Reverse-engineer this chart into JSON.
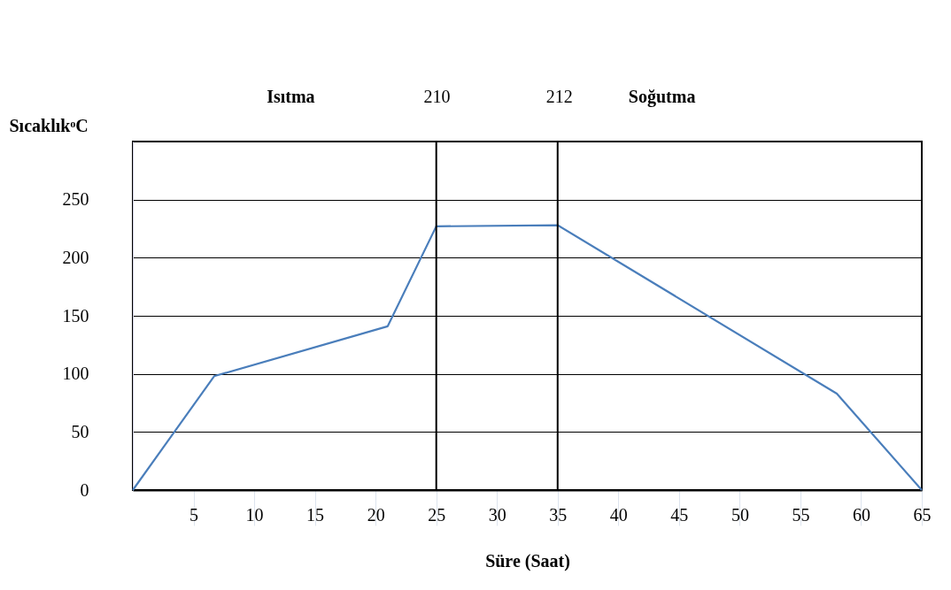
{
  "chart_data": {
    "type": "line",
    "xlabel": "Süre (Saat)",
    "ylabel": "SıcaklıkᵒC",
    "x": [
      0,
      6.7,
      21,
      25,
      35,
      58,
      65
    ],
    "series": [
      {
        "color": "#4a7ebb",
        "values": [
          0,
          98,
          141,
          227,
          228,
          83,
          0
        ]
      }
    ],
    "xlim": [
      0,
      65
    ],
    "xticks": [
      5,
      10,
      15,
      20,
      25,
      30,
      35,
      40,
      45,
      50,
      55,
      60,
      65
    ],
    "ylim": [
      0,
      300
    ],
    "yticks": [
      0,
      50,
      100,
      150,
      200,
      250
    ],
    "grid": "y",
    "ref_lines": [
      {
        "axis": "x",
        "value": 25,
        "color": "#000000"
      },
      {
        "axis": "x",
        "value": 35,
        "color": "#000000"
      }
    ],
    "annotations": [
      "Isıtma",
      "210",
      "212",
      "Soğutma"
    ]
  }
}
